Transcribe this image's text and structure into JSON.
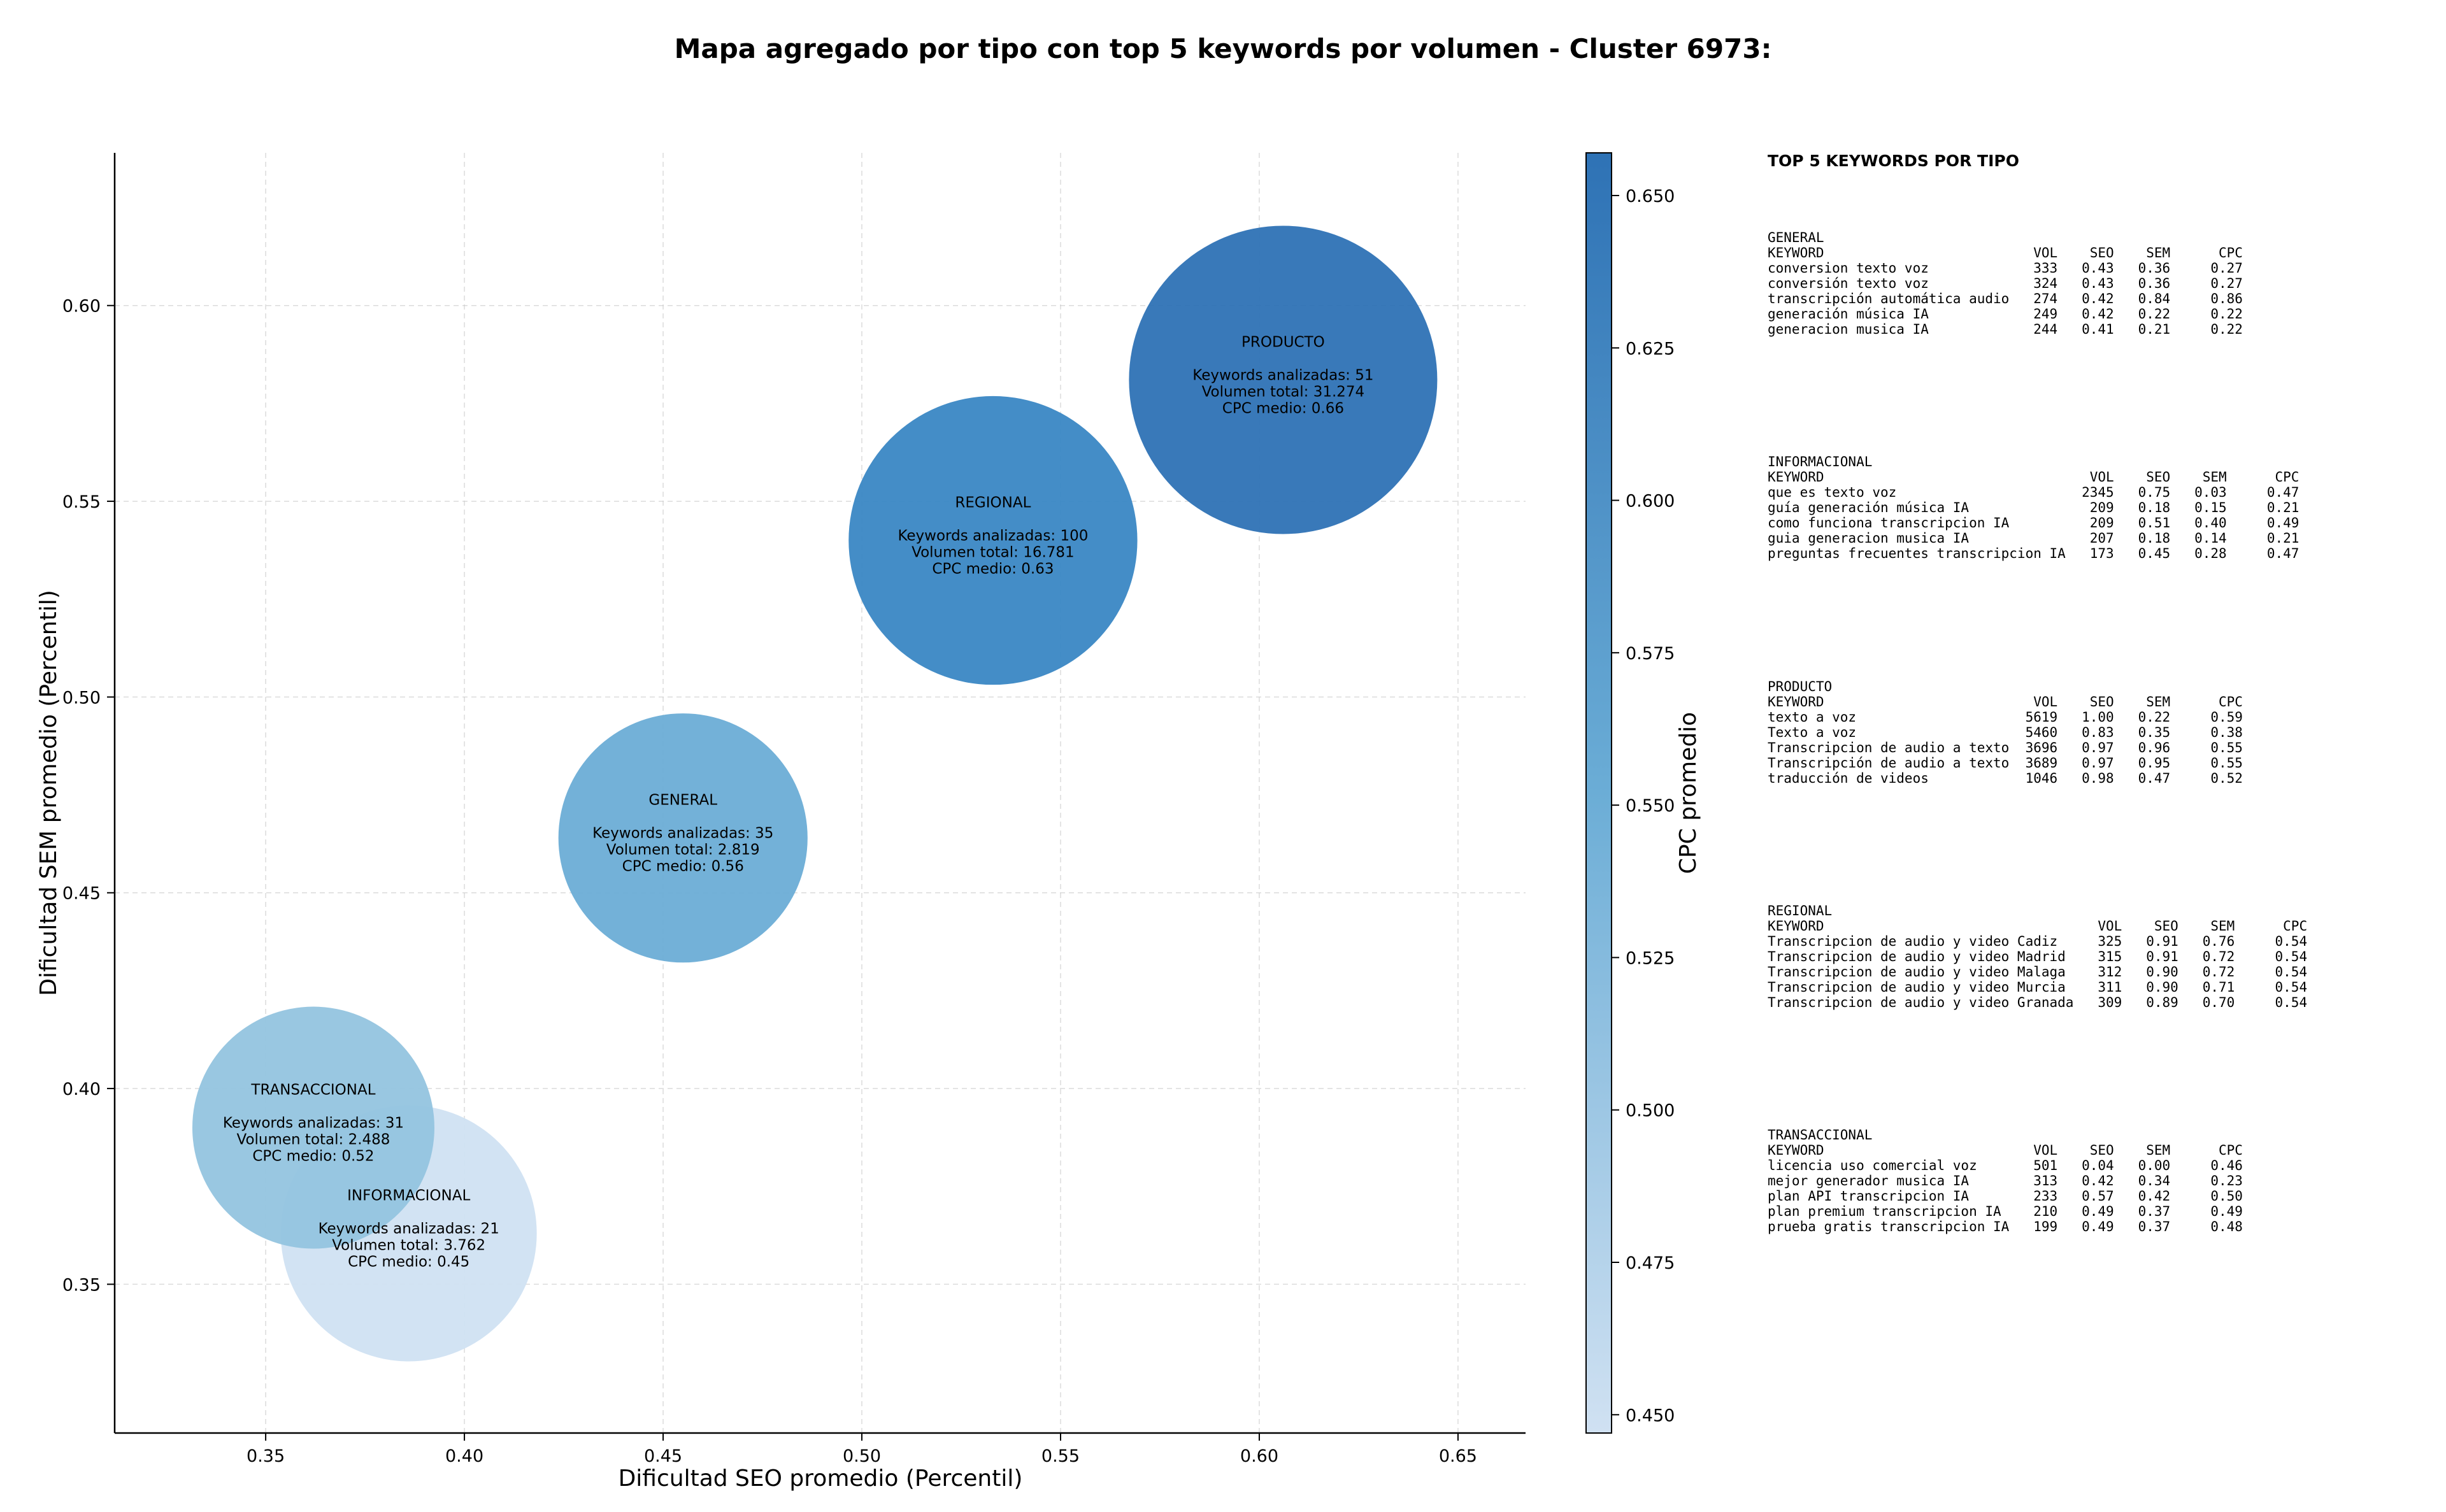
{
  "chart_data": {
    "type": "scatter",
    "title": "Mapa agregado por tipo con top 5 keywords por volumen - Cluster 6973:",
    "xlabel": "Dificultad SEO promedio (Percentil)",
    "ylabel": "Dificultad SEM promedio (Percentil)",
    "xlim": [
      0.312,
      0.667
    ],
    "ylim": [
      0.312,
      0.639
    ],
    "xticks": [
      "0.35",
      "0.40",
      "0.45",
      "0.50",
      "0.55",
      "0.60",
      "0.65"
    ],
    "yticks": [
      "0.35",
      "0.40",
      "0.45",
      "0.50",
      "0.55",
      "0.60"
    ],
    "grid": true,
    "colorbar": {
      "label": "CPC promedio",
      "range": [
        0.447,
        0.657
      ],
      "ticks": [
        "0.450",
        "0.475",
        "0.500",
        "0.525",
        "0.550",
        "0.575",
        "0.600",
        "0.625",
        "0.650"
      ],
      "color_low": "#d0e1f2",
      "color_high": "#2e72b5"
    },
    "bubbles": [
      {
        "name": "PRODUCTO",
        "x": 0.606,
        "y": 0.581,
        "keywords_label": "Keywords analizadas: 51",
        "volume_label": "Volumen total: 31.274",
        "cpc_label": "CPC medio: 0.66",
        "volume": 31274,
        "cpc": 0.66,
        "color": "#2e72b5"
      },
      {
        "name": "REGIONAL",
        "x": 0.533,
        "y": 0.54,
        "keywords_label": "Keywords analizadas: 100",
        "volume_label": "Volumen total: 16.781",
        "cpc_label": "CPC medio: 0.63",
        "volume": 16781,
        "cpc": 0.63,
        "color": "#3a87c4"
      },
      {
        "name": "GENERAL",
        "x": 0.455,
        "y": 0.464,
        "keywords_label": "Keywords analizadas: 35",
        "volume_label": "Volumen total: 2.819",
        "cpc_label": "CPC medio: 0.56",
        "volume": 2819,
        "cpc": 0.56,
        "color": "#6badd6"
      },
      {
        "name": "INFORMACIONAL",
        "x": 0.386,
        "y": 0.363,
        "keywords_label": "Keywords analizadas: 21",
        "volume_label": "Volumen total: 3.762",
        "cpc_label": "CPC medio: 0.45",
        "volume": 3762,
        "cpc": 0.45,
        "color": "#d0e1f2"
      },
      {
        "name": "TRANSACCIONAL",
        "x": 0.362,
        "y": 0.39,
        "keywords_label": "Keywords analizadas: 31",
        "volume_label": "Volumen total: 2.488",
        "cpc_label": "CPC medio: 0.52",
        "volume": 2488,
        "cpc": 0.52,
        "color": "#94c4df"
      }
    ]
  },
  "panel": {
    "heading": "TOP 5 KEYWORDS POR TIPO",
    "sections": [
      {
        "text": "GENERAL\nKEYWORD                          VOL    SEO    SEM      CPC\nconversion texto voz             333   0.43   0.36     0.27\nconversión texto voz             324   0.43   0.36     0.27\ntranscripción automática audio   274   0.42   0.84     0.86\ngeneración música IA             249   0.42   0.22     0.22\ngeneracion musica IA             244   0.41   0.21     0.22"
      },
      {
        "text": "INFORMACIONAL\nKEYWORD                                 VOL    SEO    SEM      CPC\nque es texto voz                       2345   0.75   0.03     0.47\nguía generación música IA               209   0.18   0.15     0.21\ncomo funciona transcripcion IA          209   0.51   0.40     0.49\nguia generacion musica IA               207   0.18   0.14     0.21\npreguntas frecuentes transcripcion IA   173   0.45   0.28     0.47"
      },
      {
        "text": "PRODUCTO\nKEYWORD                          VOL    SEO    SEM      CPC\ntexto a voz                     5619   1.00   0.22     0.59\nTexto a voz                     5460   0.83   0.35     0.38\nTranscripcion de audio a texto  3696   0.97   0.96     0.55\nTranscripción de audio a texto  3689   0.97   0.95     0.55\ntraducción de videos            1046   0.98   0.47     0.52"
      },
      {
        "text": "REGIONAL\nKEYWORD                                  VOL    SEO    SEM      CPC\nTranscripcion de audio y video Cadiz     325   0.91   0.76     0.54\nTranscripcion de audio y video Madrid    315   0.91   0.72     0.54\nTranscripcion de audio y video Malaga    312   0.90   0.72     0.54\nTranscripcion de audio y video Murcia    311   0.90   0.71     0.54\nTranscripcion de audio y video Granada   309   0.89   0.70     0.54"
      },
      {
        "text": "TRANSACCIONAL\nKEYWORD                          VOL    SEO    SEM      CPC\nlicencia uso comercial voz       501   0.04   0.00     0.46\nmejor generador musica IA        313   0.42   0.34     0.23\nplan API transcripcion IA        233   0.57   0.42     0.50\nplan premium transcripcion IA    210   0.49   0.37     0.49\nprueba gratis transcripcion IA   199   0.49   0.37     0.48"
      }
    ]
  }
}
